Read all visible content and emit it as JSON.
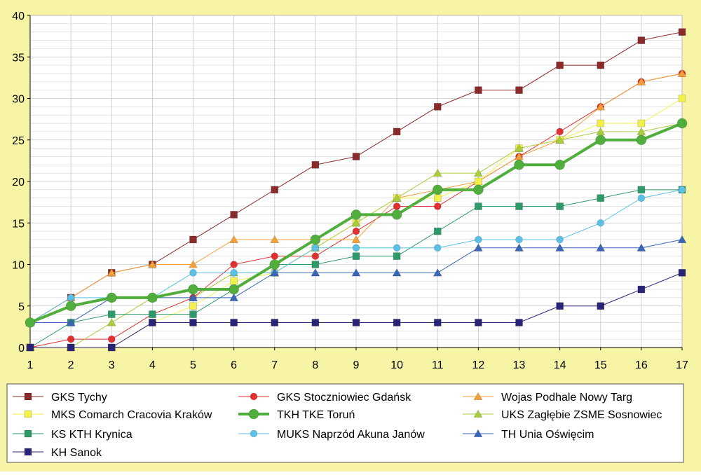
{
  "colors": {
    "background": "#f8f4a6",
    "plot_background": "#ffffff",
    "grid": "#c8c8c8",
    "axis": "#000000"
  },
  "chart_data": {
    "type": "line",
    "title": "",
    "xlabel": "",
    "ylabel": "",
    "x": [
      1,
      2,
      3,
      4,
      5,
      6,
      7,
      8,
      9,
      10,
      11,
      12,
      13,
      14,
      15,
      16,
      17
    ],
    "xlim": [
      1,
      17
    ],
    "ylim": [
      0,
      40
    ],
    "yticks": [
      0,
      5,
      10,
      15,
      20,
      25,
      30,
      35,
      40
    ],
    "grid": true,
    "legend_position": "bottom",
    "series": [
      {
        "name": "GKS Tychy",
        "color": "#8b2a2a",
        "marker": "square",
        "values": [
          3,
          6,
          9,
          10,
          13,
          16,
          19,
          22,
          23,
          26,
          29,
          31,
          31,
          34,
          34,
          37,
          38
        ]
      },
      {
        "name": "GKS Stoczniowiec Gdańsk",
        "color": "#e03030",
        "marker": "circle",
        "values": [
          0,
          1,
          1,
          4,
          6,
          10,
          11,
          11,
          14,
          17,
          17,
          20,
          23,
          26,
          29,
          32,
          33
        ]
      },
      {
        "name": "Wojas Podhale Nowy Targ",
        "color": "#f2a03c",
        "marker": "triangle",
        "values": [
          3,
          6,
          9,
          10,
          10,
          13,
          13,
          13,
          13,
          18,
          19,
          20,
          23,
          25,
          29,
          32,
          33
        ]
      },
      {
        "name": "MKS Comarch Cracovia Kraków",
        "color": "#f2f04a",
        "marker": "square",
        "values": [
          0,
          0,
          0,
          3,
          5,
          8,
          9,
          12,
          15,
          18,
          18,
          20,
          24,
          25,
          27,
          27,
          30
        ]
      },
      {
        "name": "TKH TKE Toruń",
        "color": "#4fae3c",
        "marker": "circle",
        "thick": true,
        "values": [
          3,
          5,
          6,
          6,
          7,
          7,
          10,
          13,
          16,
          16,
          19,
          19,
          22,
          22,
          25,
          25,
          27
        ]
      },
      {
        "name": "UKS Zagłębie ZSME Sosnowiec",
        "color": "#a8cc3c",
        "marker": "triangle",
        "values": [
          0,
          0,
          3,
          6,
          6,
          9,
          9,
          12,
          15,
          18,
          21,
          21,
          24,
          25,
          26,
          26,
          27
        ]
      },
      {
        "name": "KS KTH Krynica",
        "color": "#2e9a6a",
        "marker": "square",
        "values": [
          0,
          3,
          4,
          4,
          4,
          7,
          10,
          10,
          11,
          11,
          14,
          17,
          17,
          17,
          18,
          19,
          19
        ]
      },
      {
        "name": "MUKS Naprzód Akuna Janów",
        "color": "#5bc0e6",
        "marker": "circle",
        "values": [
          3,
          6,
          6,
          6,
          9,
          9,
          9,
          12,
          12,
          12,
          12,
          13,
          13,
          13,
          15,
          18,
          19
        ]
      },
      {
        "name": "TH Unia Oświęcim",
        "color": "#3a66b8",
        "marker": "triangle",
        "values": [
          3,
          3,
          6,
          6,
          6,
          6,
          9,
          9,
          9,
          9,
          9,
          12,
          12,
          12,
          12,
          12,
          13
        ]
      },
      {
        "name": "KH Sanok",
        "color": "#2a2478",
        "marker": "square",
        "values": [
          0,
          0,
          0,
          3,
          3,
          3,
          3,
          3,
          3,
          3,
          3,
          3,
          3,
          5,
          5,
          7,
          9
        ]
      }
    ]
  }
}
